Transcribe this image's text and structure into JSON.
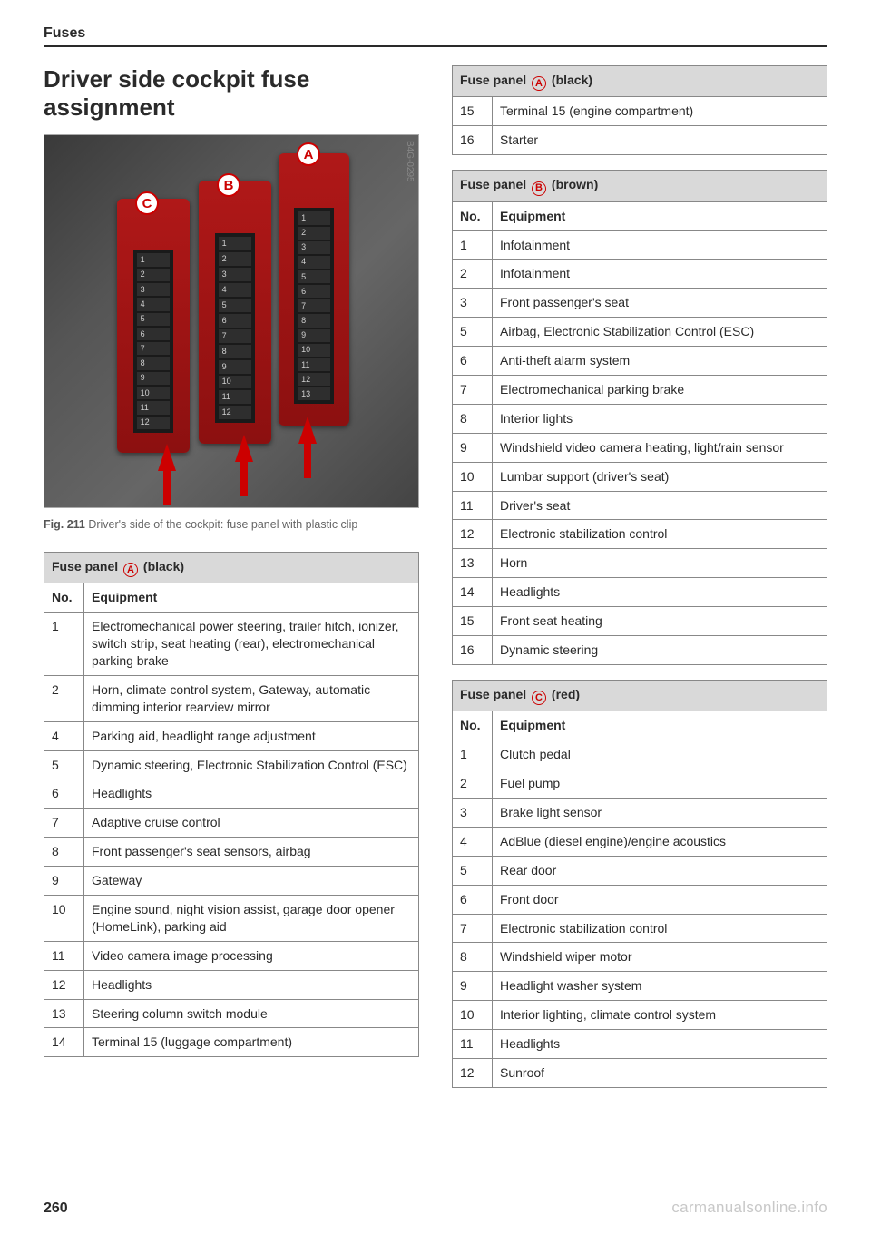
{
  "section_header": "Fuses",
  "page_title_l1": "Driver side cockpit fuse",
  "page_title_l2": "assignment",
  "figure": {
    "img_code": "B4G-0295",
    "caption_prefix": "Fig. 211",
    "caption_text": "Driver's side of the cockpit: fuse panel with plastic clip",
    "labels": {
      "A": "A",
      "B": "B",
      "C": "C"
    }
  },
  "panels": {
    "letters": {
      "A": "A",
      "B": "B",
      "C": "C"
    },
    "colors": {
      "A": "(black)",
      "B": "(brown)",
      "C": "(red)"
    }
  },
  "panel_A_header": "Fuse panel",
  "col_no": "No.",
  "col_eq": "Equipment",
  "A": [
    {
      "no": "1",
      "eq": "Electromechanical power steering, trailer hitch, ionizer, switch strip, seat heating (rear), electromechanical parking brake"
    },
    {
      "no": "2",
      "eq": "Horn, climate control system, Gateway, automatic dimming interior rearview mirror"
    },
    {
      "no": "4",
      "eq": "Parking aid, headlight range adjustment"
    },
    {
      "no": "5",
      "eq": "Dynamic steering, Electronic Stabilization Control (ESC)"
    },
    {
      "no": "6",
      "eq": "Headlights"
    },
    {
      "no": "7",
      "eq": "Adaptive cruise control"
    },
    {
      "no": "8",
      "eq": "Front passenger's seat sensors, airbag"
    },
    {
      "no": "9",
      "eq": "Gateway"
    },
    {
      "no": "10",
      "eq": "Engine sound, night vision assist, garage door opener (HomeLink), parking aid"
    },
    {
      "no": "11",
      "eq": "Video camera image processing"
    },
    {
      "no": "12",
      "eq": "Headlights"
    },
    {
      "no": "13",
      "eq": "Steering column switch module"
    },
    {
      "no": "14",
      "eq": "Terminal 15 (luggage compartment)"
    }
  ],
  "A_cont": [
    {
      "no": "15",
      "eq": "Terminal 15 (engine compartment)"
    },
    {
      "no": "16",
      "eq": "Starter"
    }
  ],
  "B": [
    {
      "no": "1",
      "eq": "Infotainment"
    },
    {
      "no": "2",
      "eq": "Infotainment"
    },
    {
      "no": "3",
      "eq": "Front passenger's seat"
    },
    {
      "no": "5",
      "eq": "Airbag, Electronic Stabilization Control (ESC)"
    },
    {
      "no": "6",
      "eq": "Anti-theft alarm system"
    },
    {
      "no": "7",
      "eq": "Electromechanical parking brake"
    },
    {
      "no": "8",
      "eq": "Interior lights"
    },
    {
      "no": "9",
      "eq": "Windshield video camera heating, light/rain sensor"
    },
    {
      "no": "10",
      "eq": "Lumbar support (driver's seat)"
    },
    {
      "no": "11",
      "eq": "Driver's seat"
    },
    {
      "no": "12",
      "eq": "Electronic stabilization control"
    },
    {
      "no": "13",
      "eq": "Horn"
    },
    {
      "no": "14",
      "eq": "Headlights"
    },
    {
      "no": "15",
      "eq": "Front seat heating"
    },
    {
      "no": "16",
      "eq": "Dynamic steering"
    }
  ],
  "C": [
    {
      "no": "1",
      "eq": "Clutch pedal"
    },
    {
      "no": "2",
      "eq": "Fuel pump"
    },
    {
      "no": "3",
      "eq": "Brake light sensor"
    },
    {
      "no": "4",
      "eq": "AdBlue (diesel engine)/engine acoustics"
    },
    {
      "no": "5",
      "eq": "Rear door"
    },
    {
      "no": "6",
      "eq": "Front door"
    },
    {
      "no": "7",
      "eq": "Electronic stabilization control"
    },
    {
      "no": "8",
      "eq": "Windshield wiper motor"
    },
    {
      "no": "9",
      "eq": "Headlight washer system"
    },
    {
      "no": "10",
      "eq": "Interior lighting, climate control system"
    },
    {
      "no": "11",
      "eq": "Headlights"
    },
    {
      "no": "12",
      "eq": "Sunroof"
    }
  ],
  "page_number": "260",
  "watermark": "carmanualsonline.info"
}
